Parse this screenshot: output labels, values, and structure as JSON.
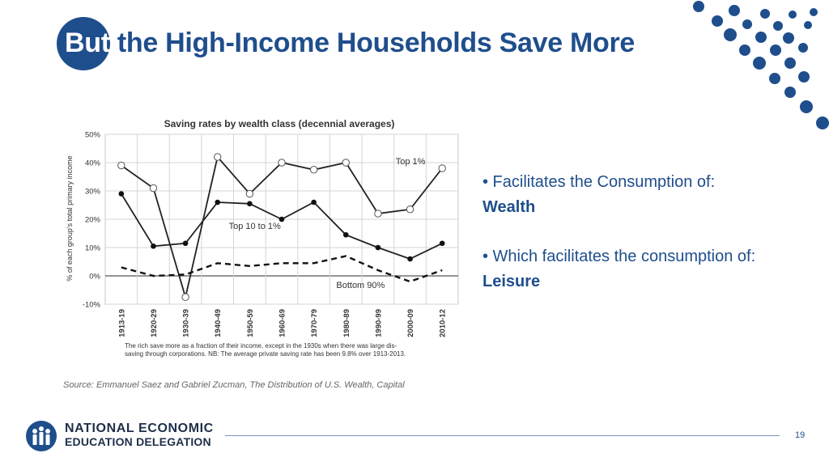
{
  "slide": {
    "title_prefix": "But",
    "title_rest": "the High-Income Households Save More",
    "page_number": "19",
    "accent_color": "#1f4e8c"
  },
  "bullets": [
    {
      "lead": "• Facilitates the Consumption of:",
      "emph": "Wealth"
    },
    {
      "lead": "• Which facilitates the consumption of:",
      "emph": "Leisure"
    }
  ],
  "logo": {
    "line1": "NATIONAL ECONOMIC",
    "line2": "EDUCATION DELEGATION",
    "icon": "people-group-icon"
  },
  "chart_data": {
    "type": "line",
    "title": "Saving rates by wealth class (decennial averages)",
    "xlabel": "",
    "ylabel": "% of each group's total primary income",
    "ylim": [
      -10,
      50
    ],
    "yticks": [
      -10,
      0,
      10,
      20,
      30,
      40,
      50
    ],
    "ytick_labels": [
      "-10%",
      "0%",
      "10%",
      "20%",
      "30%",
      "40%",
      "50%"
    ],
    "categories": [
      "1913-19",
      "1920-29",
      "1930-39",
      "1940-49",
      "1950-59",
      "1960-69",
      "1970-79",
      "1980-89",
      "1990-99",
      "2000-09",
      "2010-12"
    ],
    "grid": true,
    "series": [
      {
        "name": "Top 1%",
        "style": "line-open-markers",
        "values": [
          39,
          31,
          -7.5,
          42,
          29,
          40,
          37.5,
          40,
          22,
          23.5,
          38
        ]
      },
      {
        "name": "Top 10 to 1%",
        "style": "line-filled-markers",
        "values": [
          29,
          10.5,
          11.5,
          26,
          25.5,
          20,
          26,
          14.5,
          10,
          6,
          11.5
        ]
      },
      {
        "name": "Bottom 90%",
        "style": "dashed",
        "values": [
          3,
          0,
          0.5,
          4.5,
          3.5,
          4.5,
          4.5,
          7,
          2,
          -2,
          2
        ]
      }
    ],
    "caption_line1": "The rich save more as a fraction of their income, except in the 1930s when there was large dis-",
    "caption_line2": "saving through corporations. NB: The average private saving rate has been 9.8% over 1913-2013.",
    "source": "Source: Emmanuel Saez and Gabriel Zucman, The Distribution of U.S. Wealth, Capital"
  }
}
